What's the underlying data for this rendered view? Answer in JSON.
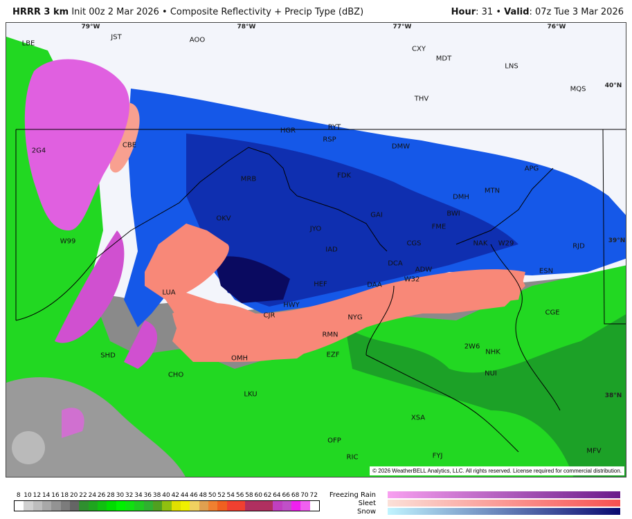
{
  "header": {
    "model": "HRRR 3 km",
    "init": "Init 00z 2 Mar 2026",
    "sep": "•",
    "product": "Composite Reflectivity + Precip Type (dBZ)",
    "hour_label": "Hour",
    "hour": ": 31",
    "valid_label": "Valid",
    "valid": ": 07z Tue 3 Mar 2026"
  },
  "lon_labels": [
    "79°W",
    "78°W",
    "77°W",
    "76°W"
  ],
  "lat_labels": [
    "40°N",
    "39°N",
    "38°N"
  ],
  "stations": [
    "JST",
    "AOO",
    "CXY",
    "MDT",
    "LNS",
    "MQS",
    "THV",
    "LBE",
    "HGR",
    "RYT",
    "RSP",
    "DMW",
    "CBE",
    "2G4",
    "MRB",
    "FDK",
    "APG",
    "MTN",
    "DMH",
    "BWI",
    "GAI",
    "OKV",
    "JYO",
    "FME",
    "CGS",
    "NAK",
    "W29",
    "RJD",
    "IAD",
    "W99",
    "ADW",
    "ESN",
    "DCA",
    "W32",
    "HEF",
    "LUA",
    "DAA",
    "HWY",
    "CJR",
    "NYG",
    "CGE",
    "RMN",
    "EZF",
    "2W6",
    "NHK",
    "SHD",
    "OMH",
    "CHO",
    "NUI",
    "LKU",
    "XSA",
    "OFP",
    "RIC",
    "FYJ",
    "MFV"
  ],
  "copyright": "© 2026 WeatherBELL Analytics, LLC. All rights reserved. License required for commercial distribution.",
  "logo": "WeatherBELL",
  "legend": {
    "ticks": [
      "8",
      "10",
      "12",
      "14",
      "16",
      "18",
      "20",
      "22",
      "24",
      "26",
      "28",
      "30",
      "32",
      "34",
      "36",
      "38",
      "40",
      "42",
      "44",
      "46",
      "48",
      "50",
      "52",
      "54",
      "56",
      "58",
      "60",
      "62",
      "64",
      "66",
      "68",
      "70",
      "72"
    ],
    "colors": [
      "#ffffff",
      "#d0d0d0",
      "#bdbdbd",
      "#a8a8a8",
      "#939393",
      "#7c7c7c",
      "#656565",
      "#2f8f2f",
      "#1fa51f",
      "#10c010",
      "#00dc00",
      "#00f000",
      "#10e010",
      "#20c820",
      "#30b030",
      "#50a020",
      "#90c010",
      "#e0e000",
      "#f0f000",
      "#f0d060",
      "#e0a050",
      "#f08030",
      "#f06020",
      "#f04030",
      "#f04030",
      "#b03060",
      "#b03060",
      "#b03060",
      "#c040c0",
      "#c050c8",
      "#f020f0",
      "#f060f0",
      "#ffffff"
    ],
    "ptypes": [
      {
        "label": "Freezing Rain",
        "from": "#f8a0f0",
        "to": "#6a1a8a"
      },
      {
        "label": "Sleet",
        "from": "#fbe0d8",
        "to": "#f85050"
      },
      {
        "label": "Snow",
        "from": "#c0f4ff",
        "to": "#0a0a70"
      }
    ]
  }
}
